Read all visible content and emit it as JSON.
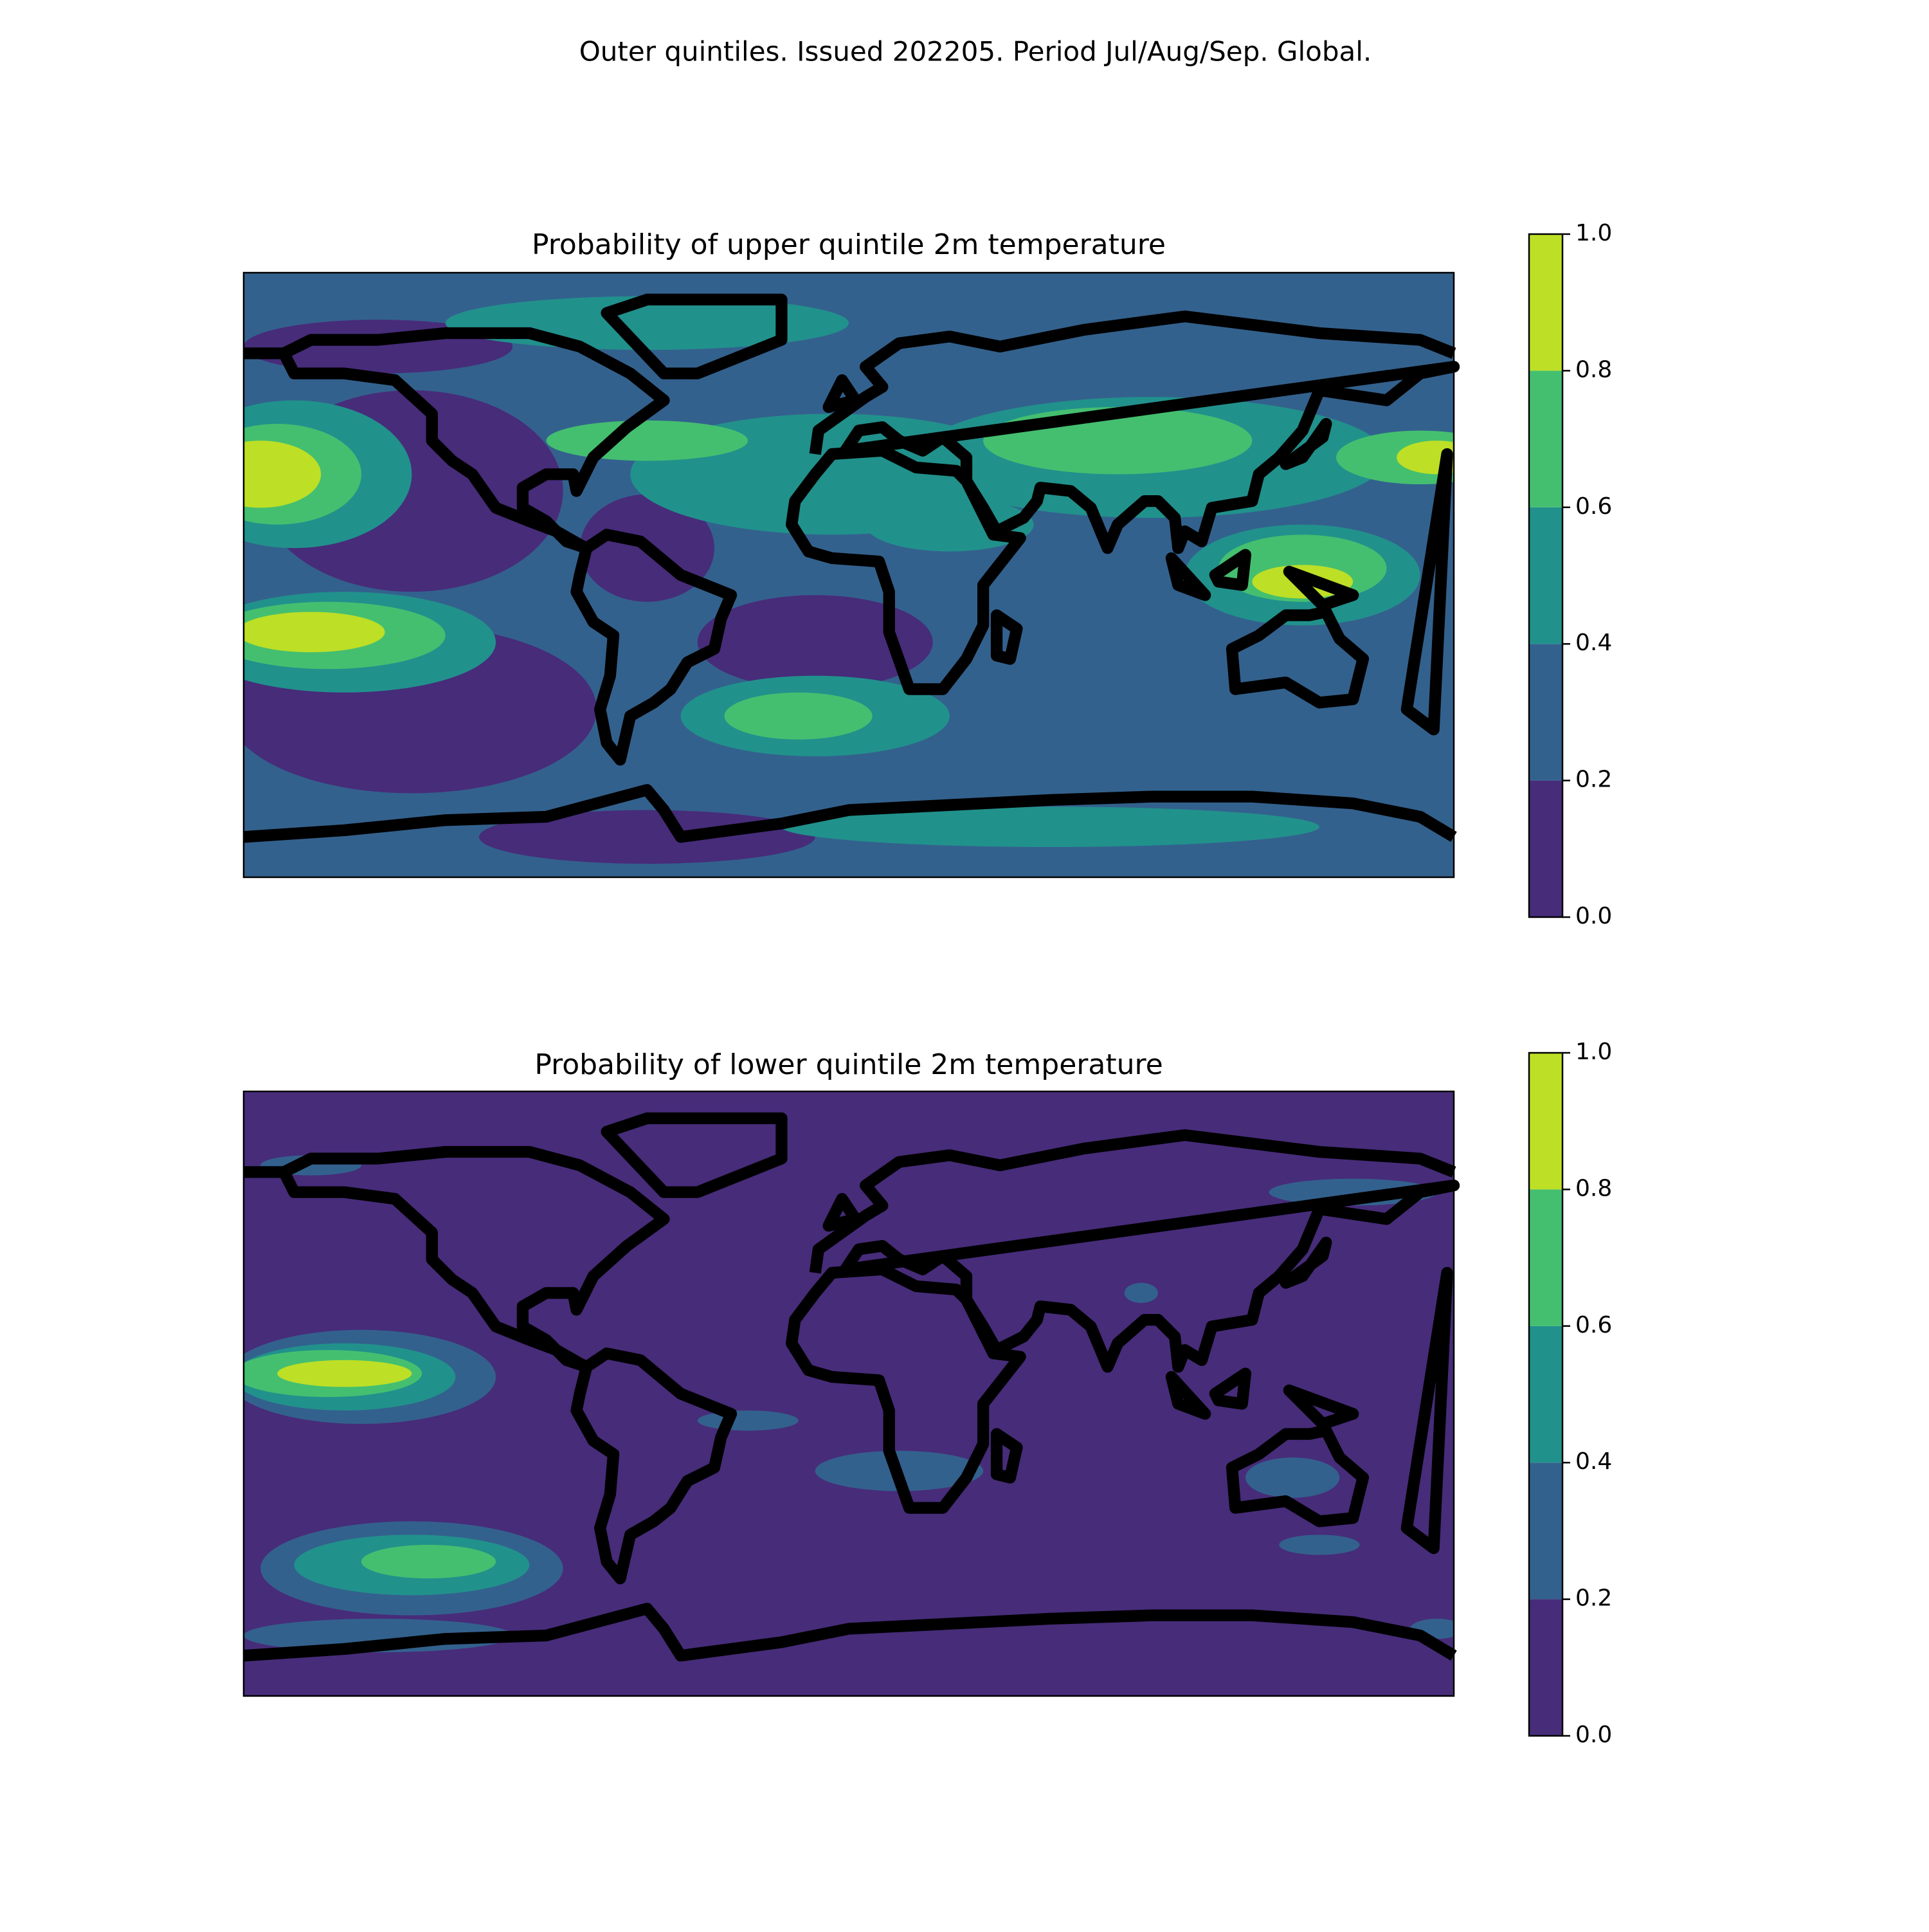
{
  "title": "Outer quintiles. Issued 202205. Period Jul/Aug/Sep. Global.",
  "maps": [
    {
      "title": "Probability of upper quintile 2m temperature",
      "colorbar": {
        "lim": [
          0,
          1
        ],
        "ticks": [
          {
            "value": 0,
            "label": "0.0"
          },
          0.2,
          0.4,
          0.6,
          0.8,
          {
            "value": 1,
            "label": "1.0"
          }
        ],
        "colors": [
          "#472c7a",
          "#33618d",
          "#21918c",
          "#44bf70",
          "#bddf26"
        ]
      }
    },
    {
      "title": "Probability of lower quintile 2m temperature",
      "colorbar": {
        "lim": [
          0,
          1
        ],
        "ticks": [
          {
            "value": 0,
            "label": "0.0"
          },
          0.2,
          0.4,
          0.6,
          0.8,
          {
            "value": 1,
            "label": "1.0"
          }
        ],
        "colors": [
          "#472c7a",
          "#33618d",
          "#21918c",
          "#44bf70",
          "#bddf26"
        ]
      }
    }
  ]
}
